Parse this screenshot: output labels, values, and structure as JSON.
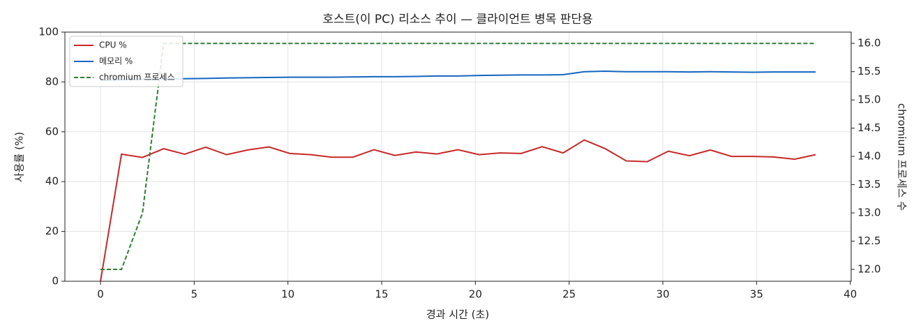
{
  "chart_data": {
    "type": "line",
    "title": "호스트(이 PC) 리소스 추이 — 클라이언트 병목 판단용",
    "xlabel": "경과 시간 (초)",
    "ylabel": "사용률 (%)",
    "y2label": "chromium 프로세스 수",
    "x": [
      0,
      1.12,
      2.24,
      3.37,
      4.49,
      5.61,
      6.73,
      7.85,
      8.98,
      10.1,
      11.22,
      12.34,
      13.46,
      14.59,
      15.71,
      16.83,
      17.95,
      19.07,
      20.2,
      21.32,
      22.44,
      23.56,
      24.68,
      25.81,
      26.93,
      28.05,
      29.17,
      30.29,
      31.42,
      32.54,
      33.66,
      34.78,
      35.9,
      37.03,
      38.15
    ],
    "series": [
      {
        "name": "CPU %",
        "color": "#c62828",
        "linestyle": "solid",
        "values": [
          0,
          51,
          49.7,
          53.2,
          51,
          53.8,
          50.8,
          52.7,
          53.9,
          51.3,
          50.8,
          49.8,
          49.8,
          52.8,
          50.5,
          51.9,
          51.1,
          52.8,
          50.8,
          51.5,
          51.3,
          54,
          51.5,
          56.7,
          53.2,
          48.3,
          48,
          52.2,
          50.4,
          52.7,
          50.1,
          50.1,
          49.9,
          49,
          50.8
        ]
      },
      {
        "name": "메모리 %",
        "color": "#1565c0",
        "linestyle": "solid",
        "values": [
          80.6,
          80.9,
          81.1,
          81.2,
          81.3,
          81.4,
          81.6,
          81.7,
          81.8,
          81.9,
          81.9,
          81.9,
          82,
          82.1,
          82.1,
          82.2,
          82.4,
          82.4,
          82.6,
          82.7,
          82.8,
          82.8,
          82.9,
          84.1,
          84.3,
          84.1,
          84.1,
          84.1,
          84,
          84.1,
          84,
          83.9,
          84,
          84,
          84
        ]
      },
      {
        "name": "chromium 프로세스",
        "color": "#2e7d32",
        "linestyle": "dashed",
        "axis": "y2",
        "values": [
          12,
          12,
          13,
          16,
          16,
          16,
          16,
          16,
          16,
          16,
          16,
          16,
          16,
          16,
          16,
          16,
          16,
          16,
          16,
          16,
          16,
          16,
          16,
          16,
          16,
          16,
          16,
          16,
          16,
          16,
          16,
          16,
          16,
          16,
          16
        ]
      }
    ],
    "xlim": [
      -1.9,
      40.05
    ],
    "xticks": [
      0,
      5,
      10,
      15,
      20,
      25,
      30,
      35,
      40
    ],
    "ylim": [
      0,
      100
    ],
    "yticks": [
      0,
      20,
      40,
      60,
      80,
      100
    ],
    "y2lim": [
      11.79,
      16.2
    ],
    "y2ticks": [
      {
        "value": 12,
        "label": "12.0"
      },
      {
        "value": 12.5,
        "label": "12.5"
      },
      {
        "value": 13,
        "label": "13.0"
      },
      {
        "value": 13.5,
        "label": "13.5"
      },
      {
        "value": 14,
        "label": "14.0"
      },
      {
        "value": 14.5,
        "label": "14.5"
      },
      {
        "value": 15,
        "label": "15.0"
      },
      {
        "value": 15.5,
        "label": "15.5"
      },
      {
        "value": 16,
        "label": "16.0"
      }
    ],
    "grid": true,
    "legend": "upper left"
  }
}
